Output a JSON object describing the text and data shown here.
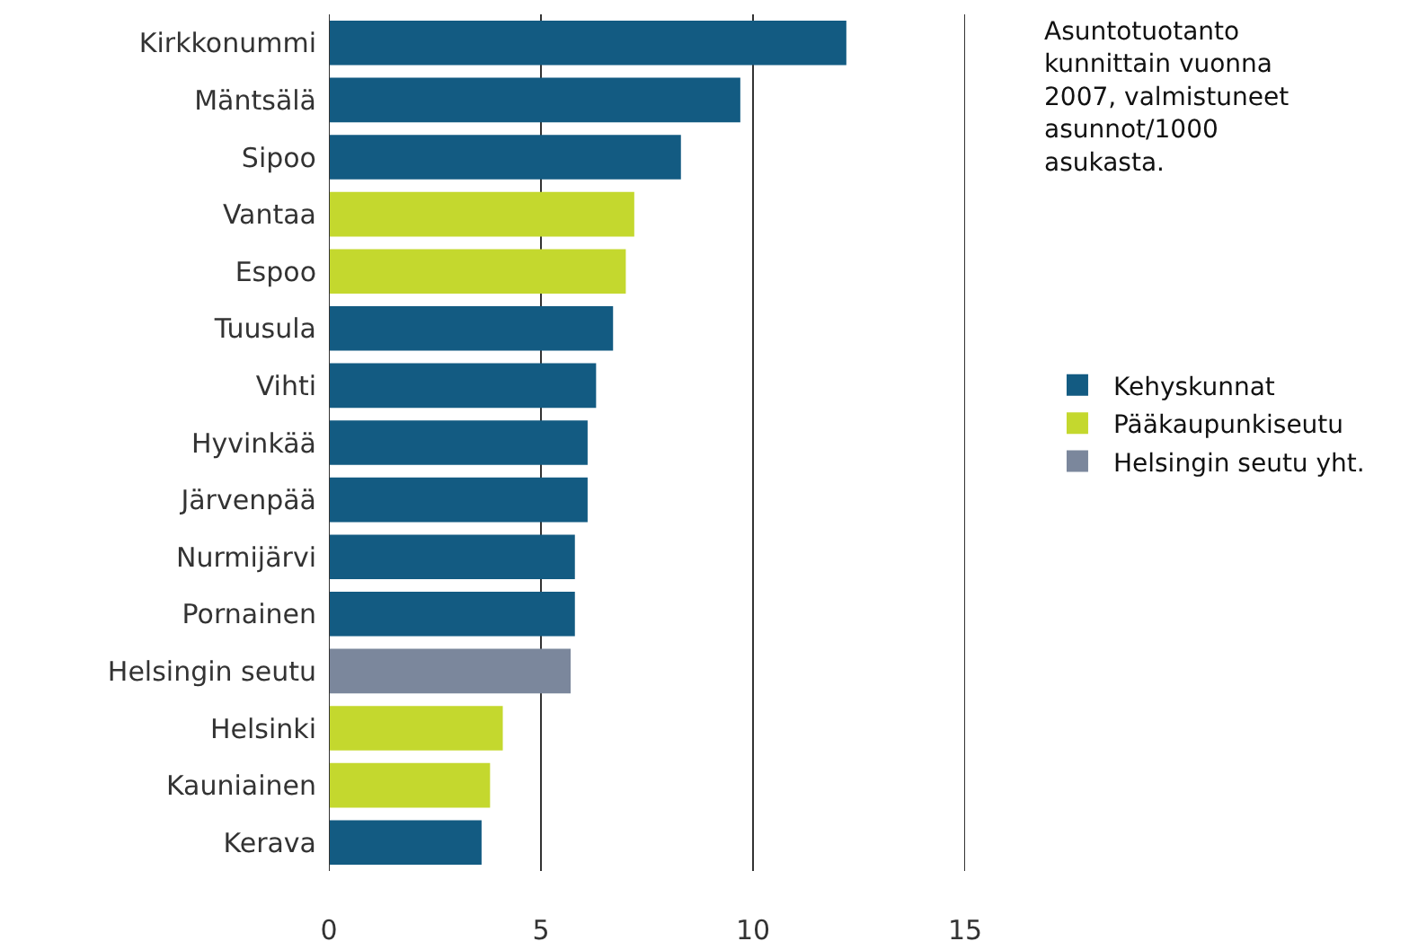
{
  "chart_data": {
    "type": "bar",
    "orientation": "horizontal",
    "title": "Asuntotuotanto kunnittain vuonna 2007, valmistuneet asunnot/1000 asukasta.",
    "categories": [
      "Kirkkonummi",
      "Mäntsälä",
      "Sipoo",
      "Vantaa",
      "Espoo",
      "Tuusula",
      "Vihti",
      "Hyvinkää",
      "Järvenpää",
      "Nurmijärvi",
      "Pornainen",
      "Helsingin seutu",
      "Helsinki",
      "Kauniainen",
      "Kerava"
    ],
    "series": [
      {
        "name": "Kehyskunnat",
        "color": "#135b82",
        "values": [
          12.2,
          9.7,
          8.3,
          null,
          null,
          6.7,
          6.3,
          6.1,
          6.1,
          5.8,
          5.8,
          null,
          null,
          null,
          3.6
        ]
      },
      {
        "name": "Pääkaupunkiseutu",
        "color": "#c4d82e",
        "values": [
          null,
          null,
          null,
          7.2,
          7.0,
          null,
          null,
          null,
          null,
          null,
          null,
          null,
          4.1,
          3.8,
          null
        ]
      },
      {
        "name": "Helsingin seutu yht.",
        "color": "#7b879c",
        "values": [
          null,
          null,
          null,
          null,
          null,
          null,
          null,
          null,
          null,
          null,
          null,
          5.7,
          null,
          null,
          null
        ]
      }
    ],
    "xlim": [
      0,
      15
    ],
    "xticks": [
      0,
      5,
      10,
      15
    ],
    "grid": "x",
    "legend": "right"
  }
}
